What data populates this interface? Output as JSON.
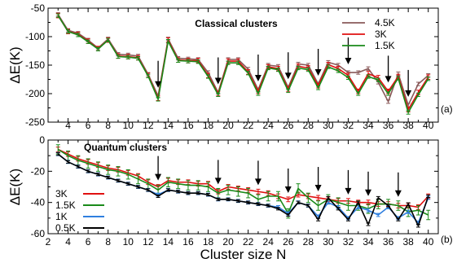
{
  "x_axis_title": "Cluster size N",
  "x_ticks": [
    2,
    3,
    4,
    5,
    6,
    7,
    8,
    9,
    10,
    11,
    12,
    13,
    14,
    15,
    16,
    17,
    18,
    19,
    20,
    21,
    22,
    23,
    24,
    25,
    26,
    27,
    28,
    29,
    30,
    31,
    32,
    33,
    34,
    35,
    36,
    37,
    38,
    39,
    40
  ],
  "x_tick_labels": [
    2,
    4,
    6,
    8,
    10,
    12,
    14,
    16,
    18,
    20,
    22,
    24,
    26,
    28,
    30,
    32,
    34,
    36,
    38,
    40
  ],
  "x_tick_labels_upper": [
    4,
    6,
    8,
    10,
    12,
    14,
    16,
    18,
    20,
    22,
    24,
    26,
    28,
    30,
    32,
    34,
    36,
    38,
    40
  ],
  "chart_data": [
    {
      "type": "line",
      "panel": "(a)",
      "title": "Classical clusters",
      "ylabel": "ΔE(K)",
      "xlim": [
        2,
        41
      ],
      "ylim": [
        -250,
        -50
      ],
      "y_ticks": [
        -250,
        -200,
        -150,
        -100,
        -50
      ],
      "x": [
        3,
        4,
        5,
        6,
        7,
        8,
        9,
        10,
        11,
        12,
        13,
        14,
        15,
        16,
        17,
        18,
        19,
        20,
        21,
        22,
        23,
        24,
        25,
        26,
        27,
        28,
        29,
        30,
        31,
        32,
        33,
        34,
        35,
        36,
        37,
        38,
        39,
        40
      ],
      "legend_position": "right",
      "series": [
        {
          "name": "4.5K",
          "color": "#8a5a5a",
          "error": 3,
          "values": [
            -61,
            -89,
            -94,
            -106,
            -120,
            -104,
            -131,
            -132,
            -134,
            -166,
            -204,
            -104,
            -138,
            -139,
            -140,
            -163,
            -198,
            -140,
            -140,
            -157,
            -193,
            -150,
            -152,
            -189,
            -148,
            -150,
            -183,
            -145,
            -150,
            -163,
            -163,
            -156,
            -180,
            -214,
            -165,
            -220,
            -183,
            -168
          ]
        },
        {
          "name": "3K",
          "color": "#e01010",
          "error": 4,
          "values": [
            -63,
            -91,
            -96,
            -108,
            -121,
            -106,
            -134,
            -135,
            -137,
            -168,
            -208,
            -106,
            -141,
            -142,
            -142,
            -168,
            -200,
            -143,
            -143,
            -162,
            -196,
            -153,
            -156,
            -192,
            -152,
            -155,
            -186,
            -149,
            -156,
            -168,
            -196,
            -165,
            -172,
            -196,
            -170,
            -228,
            -198,
            -171
          ]
        },
        {
          "name": "1.5K",
          "color": "#1a8a1a",
          "error": 3,
          "values": [
            -63,
            -91,
            -97,
            -109,
            -122,
            -106,
            -135,
            -136,
            -138,
            -169,
            -210,
            -108,
            -142,
            -143,
            -144,
            -170,
            -202,
            -146,
            -146,
            -164,
            -200,
            -155,
            -158,
            -195,
            -155,
            -158,
            -190,
            -153,
            -160,
            -172,
            -200,
            -170,
            -176,
            -200,
            -173,
            -233,
            -202,
            -174
          ]
        }
      ],
      "annotations": {
        "arrows_at_x": [
          13,
          19,
          23,
          26,
          29,
          32,
          36,
          38
        ]
      }
    },
    {
      "type": "line",
      "panel": "(b)",
      "title": "Quantum clusters",
      "ylabel": "ΔE(K)",
      "xlim": [
        2,
        41
      ],
      "ylim": [
        -60,
        0
      ],
      "y_ticks": [
        -60,
        -40,
        -20,
        0
      ],
      "x": [
        3,
        4,
        5,
        6,
        7,
        8,
        9,
        10,
        11,
        12,
        13,
        14,
        15,
        16,
        17,
        18,
        19,
        20,
        21,
        22,
        23,
        24,
        25,
        26,
        27,
        28,
        29,
        30,
        31,
        32,
        33,
        34,
        35,
        36,
        37,
        38,
        39,
        40
      ],
      "legend_position": "left",
      "series": [
        {
          "name": "3K",
          "color": "#e01010",
          "error": 1.5,
          "values": [
            -6,
            -9,
            -12,
            -14,
            -16,
            -18,
            -19,
            -21,
            -23,
            -27,
            -30,
            -26,
            -27,
            -27,
            -28,
            -28,
            -33,
            -30,
            -31,
            -32,
            -33,
            -34,
            -36,
            -38,
            -35,
            -36,
            -37,
            -38,
            -39,
            -39,
            -40,
            -40,
            -41,
            -41,
            -42,
            -42,
            -43,
            -36
          ]
        },
        {
          "name": "1.5K",
          "color": "#1a8a1a",
          "error": 3,
          "values": [
            -6,
            -10,
            -13,
            -15,
            -17,
            -19,
            -20,
            -22,
            -25,
            -28,
            -32,
            -27,
            -28,
            -29,
            -29,
            -30,
            -34,
            -32,
            -33,
            -34,
            -38,
            -36,
            -36,
            -47,
            -31,
            -37,
            -42,
            -38,
            -40,
            -42,
            -42,
            -44,
            -41,
            -41,
            -42,
            -46,
            -45,
            -48
          ]
        },
        {
          "name": "1K",
          "color": "#2f7fdf",
          "error": 1,
          "values": [
            -9,
            -14,
            -17,
            -20,
            -22,
            -24,
            -26,
            -28,
            -30,
            -32,
            -35,
            -32,
            -33,
            -34,
            -34,
            -35,
            -38,
            -38,
            -39,
            -40,
            -41,
            -42,
            -43,
            -47,
            -40,
            -42,
            -49,
            -40,
            -43,
            -50,
            -43,
            -45,
            -48,
            -43,
            -50,
            -46,
            -53,
            -37
          ]
        },
        {
          "name": "0.5K",
          "color": "#000000",
          "error": 0.8,
          "values": [
            -9,
            -14,
            -17,
            -20,
            -22,
            -24,
            -26,
            -28,
            -30,
            -32,
            -36,
            -32,
            -33,
            -34,
            -34,
            -35,
            -38,
            -38,
            -39,
            -40,
            -41,
            -42,
            -44,
            -48,
            -40,
            -42,
            -51,
            -37,
            -44,
            -51,
            -40,
            -54,
            -37,
            -42,
            -51,
            -41,
            -55,
            -36
          ]
        }
      ],
      "annotations": {
        "arrows_at_x": [
          13,
          19,
          23,
          26,
          29,
          32,
          34,
          37
        ]
      }
    }
  ]
}
